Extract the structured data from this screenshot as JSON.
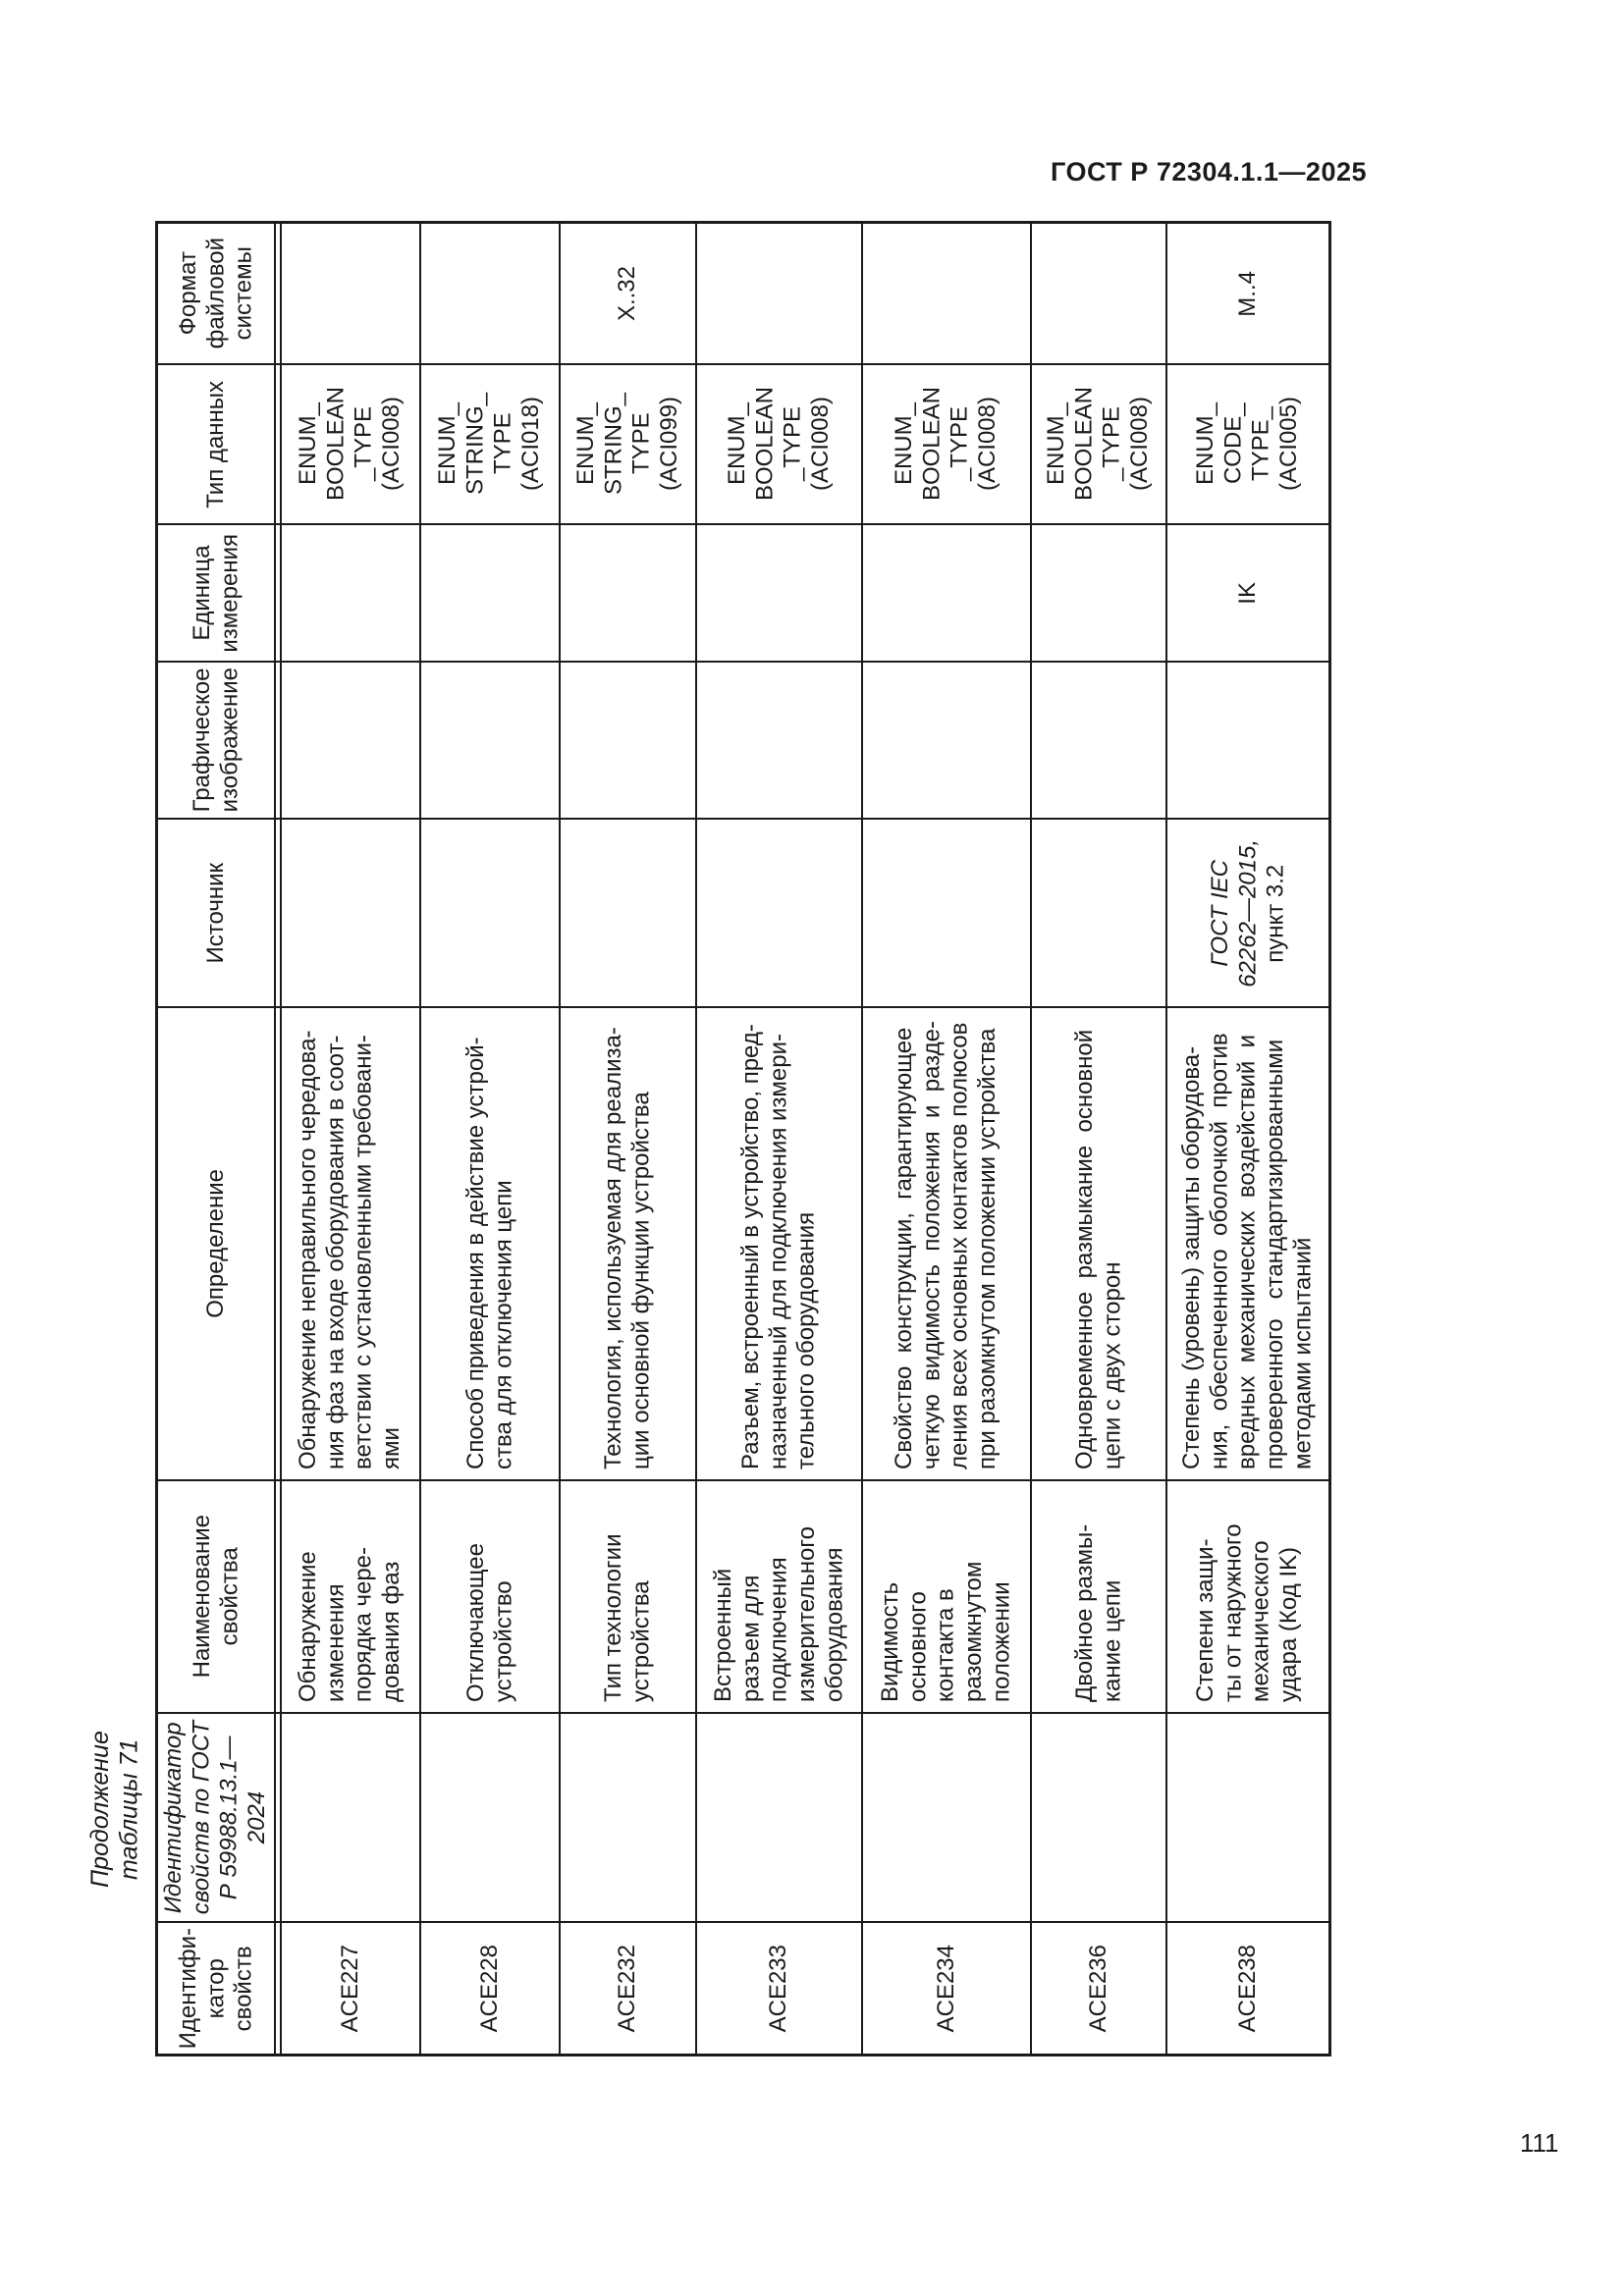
{
  "page": {
    "doc_header": "ГОСТ Р 72304.1.1—2025",
    "page_number": "111",
    "table_caption": "Продолжение таблицы 71"
  },
  "table": {
    "row_headers": [
      "Формат\nфайловой\nсистемы",
      "Тип данных",
      "Единица\nизмерения",
      "Графическое\nизображение",
      "Источник",
      "Определение",
      "Наименование\nсвойства",
      "Идентификатор\nсвойств по ГОСТ\nР 59988.13.1—\n2024",
      "Идентифи-\nкатор\nсвойств"
    ],
    "columns": [
      {
        "id": "ACE227",
        "gost_id": "",
        "name": "Обнаружение\nизменения\nпорядка чере-\nдования фаз",
        "definition": "Обнаружение неправильного чередова-\nния фаз на входе оборудования в соот-\nветствии с установленными требовани-\nями",
        "source_ref": "",
        "source_clause": "",
        "graphic": "",
        "unit": "",
        "data_type": "ENUM_\nBOOLEAN\n_TYPE\n(ACI008)",
        "file_format": ""
      },
      {
        "id": "ACE228",
        "gost_id": "",
        "name": "Отключающее\nустройство",
        "definition": "Способ приведения в действие устрой-\nства для отключения цепи",
        "source_ref": "",
        "source_clause": "",
        "graphic": "",
        "unit": "",
        "data_type": "ENUM_\nSTRING_\nTYPE\n(ACI018)",
        "file_format": ""
      },
      {
        "id": "ACE232",
        "gost_id": "",
        "name": "Тип технологии\nустройства",
        "definition": "Технология, используемая для реализа-\nции основной функции устройства",
        "source_ref": "",
        "source_clause": "",
        "graphic": "",
        "unit": "",
        "data_type": "ENUM_\nSTRING_\nTYPE\n(ACI099)",
        "file_format": "Х..32"
      },
      {
        "id": "ACE233",
        "gost_id": "",
        "name": "Встроенный\nразъем для\nподключения\nизмерительного\nоборудования",
        "definition": "Разъем, встроенный в устройство, пред-\nназначенный для подключения измери-\nтельного оборудования",
        "source_ref": "",
        "source_clause": "",
        "graphic": "",
        "unit": "",
        "data_type": "ENUM_\nBOOLEAN\n_TYPE\n(ACI008)",
        "file_format": ""
      },
      {
        "id": "ACE234",
        "gost_id": "",
        "name": "Видимость\nосновного\nконтакта в\nразомкнутом\nположении",
        "definition": "Свойство  конструкции,  гарантирующее\nчеткую  видимость  положения  и  разде-\nления всех основных контактов полюсов\nпри разомкнутом положении устройства",
        "source_ref": "",
        "source_clause": "",
        "graphic": "",
        "unit": "",
        "data_type": "ENUM_\nBOOLEAN\n_TYPE\n(ACI008)",
        "file_format": ""
      },
      {
        "id": "ACE236",
        "gost_id": "",
        "name": "Двойное размы-\nкание цепи",
        "definition": "Одновременное  размыкание  основной\nцепи с двух сторон",
        "source_ref": "",
        "source_clause": "",
        "graphic": "",
        "unit": "",
        "data_type": "ENUM_\nBOOLEAN\n_TYPE\n(ACI008)",
        "file_format": ""
      },
      {
        "id": "ACE238",
        "gost_id": "",
        "name": "Степени защи-\nты от наружного\nмеханического\nудара (Код IK)",
        "definition": "Степень (уровень) защиты оборудова-\nния,  обеспеченного  оболочкой  против\nвредных  механических  воздействий  и\nпроверенного   стандартизированными\nметодами испытаний",
        "source_ref": "ГОСТ IEC\n62262—2015,\n",
        "source_clause": "пункт 3.2",
        "graphic": "",
        "unit": "IK",
        "data_type": "ENUM_\nCODE_\nTYPE_\n(ACI005)",
        "file_format": "М..4"
      }
    ]
  }
}
